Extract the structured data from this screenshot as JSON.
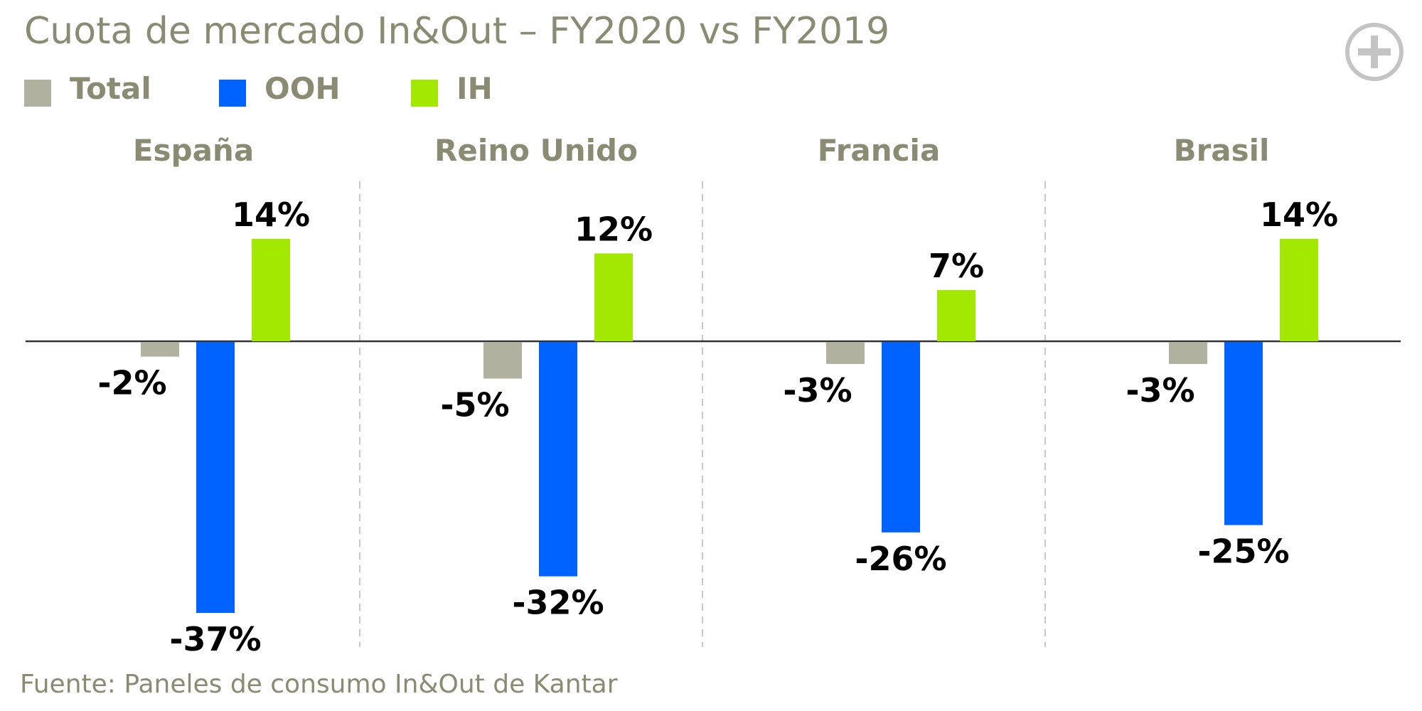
{
  "title": "Cuota de mercado In&Out – FY2020 vs FY2019",
  "source": "Fuente: Paneles de consumo In&Out de Kantar",
  "icons": {
    "expand": "plus-circle-icon"
  },
  "colors": {
    "text": "#8b8b73",
    "Total": "#b1b19f",
    "OOH": "#0062ff",
    "IH": "#a2e800",
    "label": "#000000",
    "axis": "#333333",
    "divider": "#c8c8c8"
  },
  "chart_data": {
    "type": "bar",
    "title": "Cuota de mercado In&Out – FY2020 vs FY2019",
    "categories": [
      "España",
      "Reino Unido",
      "Francia",
      "Brasil"
    ],
    "series": [
      {
        "name": "Total",
        "values": [
          -2,
          -5,
          -3,
          -3
        ]
      },
      {
        "name": "OOH",
        "values": [
          -37,
          -32,
          -26,
          -25
        ]
      },
      {
        "name": "IH",
        "values": [
          14,
          12,
          7,
          14
        ]
      }
    ],
    "data_labels": [
      [
        "-2%",
        "-37%",
        "14%"
      ],
      [
        "-5%",
        "-32%",
        "12%"
      ],
      [
        "-3%",
        "-26%",
        "7%"
      ],
      [
        "-3%",
        "-25%",
        "14%"
      ]
    ],
    "unit": "%",
    "xlabel": "",
    "ylabel": "",
    "ylim": [
      -40,
      16
    ],
    "legend": "top-left",
    "grid": false
  }
}
